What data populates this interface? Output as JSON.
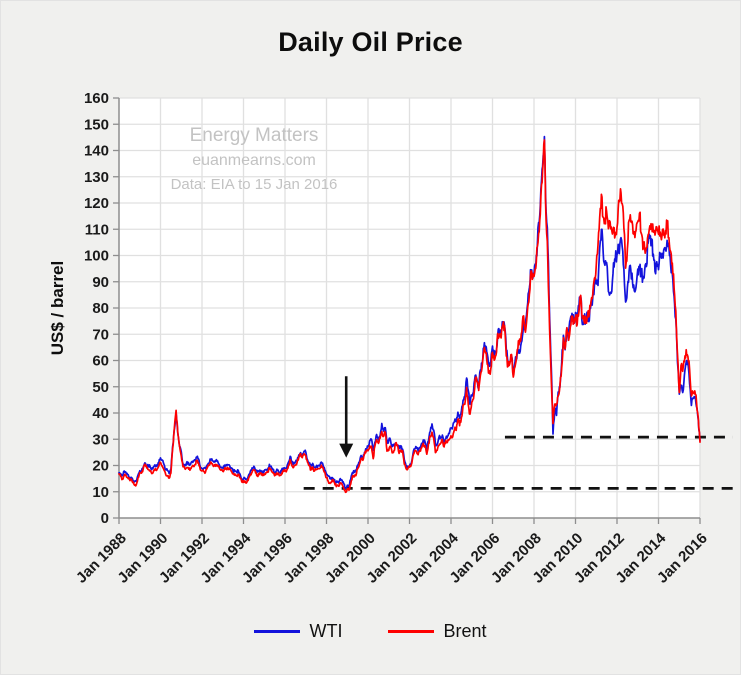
{
  "page": {
    "background_color": "#f0f0ee",
    "plot_background_color": "#ffffff"
  },
  "chart_data": {
    "type": "line",
    "title": "Daily Oil Price",
    "xlabel": "",
    "ylabel": "US$ / barrel",
    "ylim": [
      0,
      160
    ],
    "ytick_step": 10,
    "x_start_year": 1988,
    "x_tick_interval_years": 2,
    "points_per_year": 12,
    "xtick_labels": [
      "Jan 1988",
      "Jan 1990",
      "Jan 1992",
      "Jan 1994",
      "Jan 1996",
      "Jan 1998",
      "Jan 2000",
      "Jan 2002",
      "Jan 2004",
      "Jan 2006",
      "Jan 2008",
      "Jan 2010",
      "Jan 2012",
      "Jan 2014",
      "Jan 2016"
    ],
    "grid": true,
    "grid_color": "#e0e0e0",
    "axis_color": "#8e8e8e",
    "tick_label_color": "#1a1a1a",
    "legend_position": "bottom",
    "watermark": {
      "color": "#c3c3c3",
      "lines": [
        "Energy Matters",
        "euanmearns.com",
        "Data: EIA to 15 Jan 2016"
      ]
    },
    "series": [
      {
        "name": "WTI",
        "color": "#1313dc",
        "monthly_values": [
          17.2,
          16.8,
          16.2,
          17.9,
          17.4,
          16.5,
          15.5,
          15.5,
          14.5,
          13.8,
          14.0,
          16.3,
          18.0,
          17.9,
          19.4,
          21.0,
          20.0,
          20.0,
          19.6,
          18.5,
          19.6,
          20.1,
          19.8,
          21.1,
          22.9,
          22.1,
          20.4,
          18.4,
          18.2,
          17.0,
          18.4,
          27.2,
          33.7,
          40.0,
          32.3,
          27.3,
          25.2,
          20.5,
          19.9,
          20.8,
          21.2,
          20.2,
          21.4,
          21.7,
          21.9,
          23.2,
          22.5,
          19.5,
          18.8,
          19.0,
          18.9,
          20.2,
          20.9,
          22.4,
          21.8,
          21.3,
          21.9,
          21.7,
          20.3,
          19.4,
          19.0,
          20.1,
          20.3,
          20.3,
          19.9,
          19.1,
          17.9,
          18.0,
          17.5,
          18.1,
          16.7,
          14.5,
          15.0,
          14.8,
          14.7,
          16.4,
          17.9,
          19.1,
          19.7,
          18.4,
          17.5,
          17.7,
          18.1,
          17.2,
          18.0,
          18.5,
          18.6,
          20.4,
          19.7,
          18.4,
          17.3,
          18.0,
          18.2,
          17.4,
          18.0,
          19.0,
          18.9,
          19.1,
          21.3,
          23.5,
          21.2,
          20.5,
          21.3,
          22.0,
          24.0,
          24.9,
          23.7,
          25.4,
          25.1,
          22.2,
          21.0,
          19.7,
          20.8,
          19.2,
          19.6,
          19.9,
          19.8,
          21.3,
          20.2,
          18.3,
          16.7,
          16.1,
          15.0,
          15.4,
          14.9,
          13.7,
          14.1,
          13.4,
          15.0,
          14.4,
          13.0,
          11.3,
          12.5,
          12.0,
          14.7,
          17.3,
          17.7,
          17.9,
          20.1,
          21.3,
          23.8,
          22.6,
          25.0,
          26.1,
          27.2,
          29.4,
          29.9,
          25.7,
          28.8,
          31.8,
          29.7,
          31.3,
          36.0,
          33.1,
          34.4,
          28.4,
          29.6,
          29.6,
          27.2,
          27.5,
          28.6,
          27.6,
          26.5,
          27.5,
          26.2,
          22.2,
          19.7,
          19.3,
          19.7,
          20.7,
          24.4,
          26.3,
          27.0,
          25.5,
          26.9,
          28.4,
          29.7,
          28.9,
          26.3,
          29.4,
          33.0,
          35.8,
          33.5,
          28.2,
          28.1,
          30.7,
          30.8,
          31.6,
          28.3,
          30.3,
          31.1,
          32.2,
          34.3,
          34.7,
          36.8,
          36.7,
          40.3,
          38.0,
          40.8,
          44.9,
          46.0,
          53.3,
          48.5,
          43.3,
          46.8,
          48.0,
          54.3,
          53.0,
          49.8,
          56.4,
          58.7,
          65.0,
          65.5,
          62.4,
          58.3,
          59.4,
          65.5,
          61.6,
          62.9,
          69.7,
          70.9,
          71.0,
          74.4,
          73.1,
          63.9,
          58.9,
          59.4,
          62.0,
          54.6,
          59.3,
          60.6,
          64.0,
          63.5,
          67.5,
          74.2,
          72.4,
          79.9,
          86.2,
          94.6,
          91.7,
          93.0,
          95.4,
          105.5,
          112.6,
          125.4,
          133.9,
          145.3,
          116.7,
          103.9,
          76.7,
          57.3,
          32.0,
          41.7,
          39.1,
          48.0,
          49.8,
          59.0,
          69.6,
          64.1,
          71.0,
          69.4,
          75.7,
          78.0,
          74.5,
          78.3,
          76.4,
          81.2,
          84.4,
          73.7,
          75.3,
          76.3,
          76.6,
          75.2,
          81.9,
          84.2,
          89.2,
          89.2,
          88.6,
          102.9,
          110.0,
          100.9,
          96.3,
          97.3,
          86.3,
          85.5,
          86.4,
          97.2,
          98.6,
          100.3,
          102.3,
          106.2,
          103.3,
          94.7,
          82.3,
          87.9,
          94.1,
          94.5,
          89.5,
          86.5,
          87.9,
          94.8,
          95.3,
          93.0,
          92.0,
          94.5,
          95.8,
          104.7,
          106.6,
          106.3,
          100.5,
          93.9,
          97.6,
          94.6,
          100.8,
          100.8,
          102.1,
          102.2,
          105.8,
          103.6,
          96.5,
          93.2,
          84.4,
          75.8,
          59.3,
          47.2,
          50.6,
          47.8,
          54.4,
          59.3,
          59.8,
          51.2,
          42.9,
          45.5,
          46.2,
          42.4,
          37.2,
          29.4
        ]
      },
      {
        "name": "Brent",
        "color": "#fe0000",
        "monthly_values": [
          16.8,
          15.9,
          14.8,
          16.2,
          16.3,
          15.4,
          14.7,
          14.9,
          13.5,
          12.5,
          12.7,
          15.3,
          17.3,
          17.1,
          18.7,
          20.5,
          19.1,
          18.4,
          18.0,
          16.9,
          18.0,
          18.8,
          18.5,
          19.8,
          21.2,
          19.9,
          18.3,
          16.6,
          16.0,
          15.2,
          17.1,
          26.3,
          34.0,
          41.0,
          32.5,
          27.5,
          23.6,
          19.5,
          19.0,
          19.1,
          19.2,
          18.2,
          19.4,
          19.8,
          20.4,
          21.8,
          21.1,
          18.4,
          17.9,
          17.8,
          17.5,
          19.1,
          20.0,
          21.3,
          20.6,
          19.9,
          20.4,
          19.9,
          19.1,
          18.2,
          17.8,
          18.8,
          18.9,
          19.0,
          18.5,
          17.7,
          16.8,
          16.8,
          16.1,
          16.7,
          15.3,
          13.7,
          14.2,
          13.9,
          13.7,
          15.3,
          16.7,
          17.5,
          18.4,
          17.2,
          16.1,
          16.5,
          17.2,
          16.2,
          16.8,
          17.3,
          17.4,
          19.1,
          18.4,
          17.2,
          16.1,
          16.7,
          17.0,
          16.1,
          17.0,
          18.0,
          17.9,
          18.1,
          20.0,
          22.2,
          19.9,
          19.3,
          20.1,
          21.2,
          23.1,
          24.5,
          23.0,
          24.5,
          23.8,
          21.3,
          19.9,
          18.3,
          19.4,
          17.9,
          18.5,
          18.8,
          18.8,
          20.1,
          19.2,
          17.5,
          15.3,
          14.1,
          13.2,
          13.8,
          14.5,
          12.6,
          12.3,
          12.1,
          13.4,
          12.8,
          11.3,
          9.8,
          11.2,
          10.6,
          12.9,
          15.9,
          15.7,
          16.1,
          18.7,
          20.4,
          22.6,
          22.0,
          24.3,
          25.7,
          25.6,
          27.5,
          27.3,
          22.6,
          27.4,
          29.8,
          28.4,
          30.4,
          32.9,
          31.1,
          32.6,
          25.5,
          25.8,
          27.4,
          24.8,
          25.6,
          28.5,
          27.8,
          24.6,
          25.8,
          25.6,
          20.5,
          18.9,
          18.7,
          19.4,
          20.2,
          23.7,
          25.7,
          25.4,
          24.1,
          25.8,
          26.7,
          28.4,
          27.5,
          24.3,
          28.3,
          31.2,
          32.7,
          30.4,
          24.9,
          25.8,
          27.6,
          28.4,
          29.8,
          27.1,
          29.6,
          28.9,
          29.9,
          31.3,
          30.9,
          33.8,
          33.4,
          37.6,
          35.2,
          38.3,
          43.0,
          43.3,
          49.7,
          43.1,
          39.6,
          44.2,
          45.4,
          52.9,
          51.9,
          48.6,
          54.4,
          57.5,
          64.1,
          62.9,
          58.5,
          55.2,
          56.9,
          63.1,
          60.1,
          62.1,
          70.3,
          69.8,
          68.6,
          73.7,
          73.2,
          61.7,
          57.8,
          58.8,
          62.3,
          53.7,
          57.6,
          62.1,
          67.5,
          67.2,
          71.1,
          77.0,
          70.8,
          77.2,
          82.3,
          92.4,
          90.9,
          92.0,
          95.0,
          103.7,
          109.1,
          122.8,
          132.3,
          144.0,
          113.2,
          98.1,
          71.9,
          52.5,
          36.0,
          43.4,
          43.3,
          46.5,
          50.2,
          57.3,
          68.6,
          64.4,
          72.5,
          67.7,
          72.8,
          76.7,
          74.5,
          76.2,
          73.7,
          78.8,
          84.8,
          75.9,
          74.8,
          75.6,
          77.1,
          77.8,
          82.7,
          85.3,
          91.4,
          96.5,
          104.0,
          114.6,
          123.3,
          114.5,
          114.0,
          116.8,
          110.2,
          112.8,
          109.5,
          110.7,
          107.9,
          110.7,
          121.0,
          125.4,
          119.7,
          110.3,
          95.2,
          102.6,
          113.4,
          112.9,
          111.7,
          109.1,
          109.5,
          112.9,
          116.1,
          108.5,
          102.3,
          102.6,
          102.9,
          107.9,
          111.3,
          111.6,
          109.1,
          107.8,
          110.8,
          108.1,
          108.9,
          107.5,
          107.8,
          109.5,
          111.8,
          106.8,
          101.6,
          97.1,
          87.4,
          79.0,
          62.3,
          47.8,
          58.1,
          55.9,
          59.5,
          64.1,
          61.5,
          56.6,
          46.5,
          47.6,
          48.4,
          44.3,
          38.0,
          28.9
        ]
      }
    ],
    "annotations": {
      "arrow": {
        "x_year": 1998.95,
        "y_from_value": 54,
        "y_to_value": 23,
        "color": "#111111"
      },
      "dashed_lines": [
        {
          "value": 11.3,
          "from_year": 1996.9,
          "to_year": 2017.6,
          "color": "#111111"
        },
        {
          "value": 30.8,
          "from_year": 2006.6,
          "to_year": 2017.6,
          "color": "#111111"
        }
      ]
    }
  }
}
